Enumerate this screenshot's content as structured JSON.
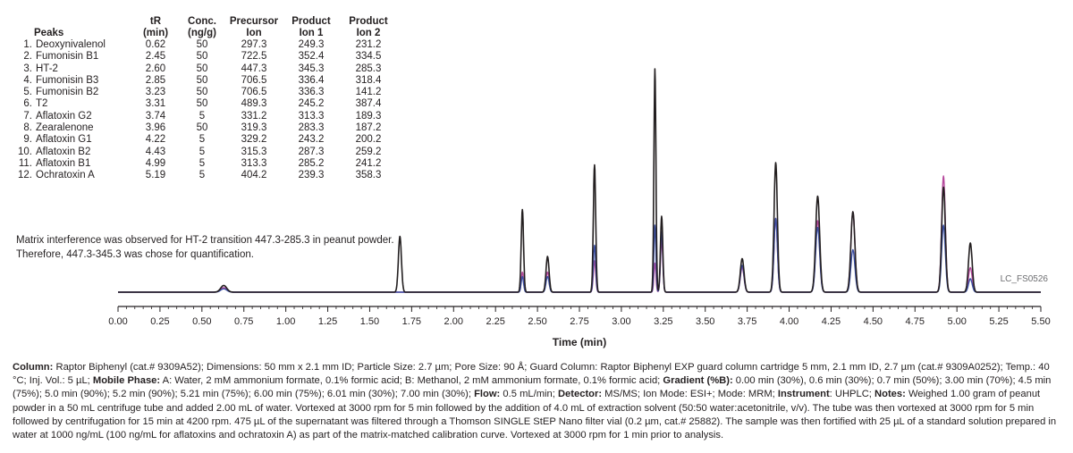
{
  "chart_data": {
    "type": "line",
    "title": "",
    "xlabel": "Time (min)",
    "ylabel": "",
    "xlim": [
      0.0,
      5.5
    ],
    "x_ticks": [
      "0.00",
      "0.25",
      "0.50",
      "0.75",
      "1.00",
      "1.25",
      "1.50",
      "1.75",
      "2.00",
      "2.25",
      "2.50",
      "2.75",
      "3.00",
      "3.25",
      "3.50",
      "3.75",
      "4.00",
      "4.25",
      "4.50",
      "4.75",
      "5.00",
      "5.25",
      "5.50"
    ],
    "y_axis_shown": false,
    "grid": false,
    "figure_code": "LC_FS0526",
    "series_colors": [
      "#231f20",
      "#3b4fa3",
      "#b5489c"
    ],
    "peak_table": {
      "headers": {
        "peaks": "Peaks",
        "rt": [
          "tR",
          "(min)"
        ],
        "conc": [
          "Conc.",
          "(ng/g)"
        ],
        "precursor": [
          "Precursor",
          "Ion"
        ],
        "product1": [
          "Product",
          "Ion 1"
        ],
        "product2": [
          "Product",
          "Ion 2"
        ]
      },
      "rows": [
        {
          "num": "1.",
          "name": "Deoxynivalenol",
          "rt": "0.62",
          "conc": "50",
          "precursor": "297.3",
          "p1": "249.3",
          "p2": "231.2"
        },
        {
          "num": "2.",
          "name": "Fumonisin B1",
          "rt": "2.45",
          "conc": "50",
          "precursor": "722.5",
          "p1": "352.4",
          "p2": "334.5"
        },
        {
          "num": "3.",
          "name": "HT-2",
          "rt": "2.60",
          "conc": "50",
          "precursor": "447.3",
          "p1": "345.3",
          "p2": "285.3"
        },
        {
          "num": "4.",
          "name": "Fumonisin B3",
          "rt": "2.85",
          "conc": "50",
          "precursor": "706.5",
          "p1": "336.4",
          "p2": "318.4"
        },
        {
          "num": "5.",
          "name": "Fumonisin B2",
          "rt": "3.23",
          "conc": "50",
          "precursor": "706.5",
          "p1": "336.3",
          "p2": "141.2"
        },
        {
          "num": "6.",
          "name": "T2",
          "rt": "3.31",
          "conc": "50",
          "precursor": "489.3",
          "p1": "245.2",
          "p2": "387.4"
        },
        {
          "num": "7.",
          "name": "Aflatoxin G2",
          "rt": "3.74",
          "conc": "5",
          "precursor": "331.2",
          "p1": "313.3",
          "p2": "189.3"
        },
        {
          "num": "8.",
          "name": "Zearalenone",
          "rt": "3.96",
          "conc": "50",
          "precursor": "319.3",
          "p1": "283.3",
          "p2": "187.2"
        },
        {
          "num": "9.",
          "name": "Aflatoxin G1",
          "rt": "4.22",
          "conc": "5",
          "precursor": "329.2",
          "p1": "243.2",
          "p2": "200.2"
        },
        {
          "num": "10.",
          "name": "Aflatoxin B2",
          "rt": "4.43",
          "conc": "5",
          "precursor": "315.3",
          "p1": "287.3",
          "p2": "259.2"
        },
        {
          "num": "11.",
          "name": "Aflatoxin B1",
          "rt": "4.99",
          "conc": "5",
          "precursor": "313.3",
          "p1": "285.2",
          "p2": "241.2"
        },
        {
          "num": "12.",
          "name": "Ochratoxin A",
          "rt": "5.19",
          "conc": "5",
          "precursor": "404.2",
          "p1": "239.3",
          "p2": "358.3"
        }
      ]
    },
    "peaks_relative_height": [
      {
        "t": 0.63,
        "black": 0.03,
        "blue": 0.015,
        "pink": 0.02,
        "w": 0.018
      },
      {
        "t": 1.68,
        "black": 0.25,
        "blue": 0,
        "pink": 0,
        "w": 0.009
      },
      {
        "t": 2.41,
        "black": 0.37,
        "blue": 0.07,
        "pink": 0.09,
        "w": 0.007
      },
      {
        "t": 2.56,
        "black": 0.16,
        "blue": 0.07,
        "pink": 0.09,
        "w": 0.009
      },
      {
        "t": 2.84,
        "black": 0.57,
        "blue": 0.21,
        "pink": 0.14,
        "w": 0.007
      },
      {
        "t": 3.2,
        "black": 1.0,
        "blue": 0.3,
        "pink": 0.13,
        "w": 0.006
      },
      {
        "t": 3.24,
        "black": 0.34,
        "blue": 0.27,
        "pink": 0.23,
        "w": 0.007
      },
      {
        "t": 3.72,
        "black": 0.15,
        "blue": 0.12,
        "pink": 0.11,
        "w": 0.011
      },
      {
        "t": 3.92,
        "black": 0.58,
        "blue": 0.33,
        "pink": 0.33,
        "w": 0.01
      },
      {
        "t": 4.17,
        "black": 0.43,
        "blue": 0.29,
        "pink": 0.32,
        "w": 0.012
      },
      {
        "t": 4.38,
        "black": 0.36,
        "blue": 0.19,
        "pink": 0.36,
        "w": 0.012
      },
      {
        "t": 4.92,
        "black": 0.47,
        "blue": 0.3,
        "pink": 0.52,
        "w": 0.011
      },
      {
        "t": 5.08,
        "black": 0.22,
        "blue": 0.06,
        "pink": 0.11,
        "w": 0.011
      }
    ]
  },
  "note": "Matrix interference was observed for HT-2 transition 447.3-285.3 in peanut powder. Therefore, 447.3-345.3 was chose for quantification.",
  "conditions": [
    {
      "label": "Column:",
      "text": " Raptor Biphenyl (cat.# 9309A52); Dimensions: 50 mm x 2.1 mm ID; Particle Size: 2.7 µm; Pore Size: 90 Å; Guard Column: Raptor Biphenyl EXP guard column cartridge 5 mm, 2.1 mm ID, 2.7 µm (cat.# 9309A0252); Temp.: 40 °C; Inj. Vol.: 5 µL; "
    },
    {
      "label": "Mobile Phase:",
      "text": " A: Water, 2 mM ammonium formate, 0.1% formic acid; B: Methanol, 2 mM ammonium formate, 0.1% formic acid; "
    },
    {
      "label": "Gradient (%B):",
      "text": " 0.00 min (30%), 0.6 min (30%); 0.7 min (50%); 3.00 min (70%); 4.5 min (75%); 5.0 min (90%); 5.2 min (90%); 5.21 min (75%); 6.00 min (75%); 6.01 min (30%); 7.00 min (30%); "
    },
    {
      "label": "Flow:",
      "text": " 0.5 mL/min; "
    },
    {
      "label": "Detector:",
      "text": " MS/MS; Ion Mode: ESI+; Mode: MRM; "
    },
    {
      "label": "Instrument",
      "text": ": UHPLC; "
    },
    {
      "label": "Notes:",
      "text": " Weighed 1.00 gram of peanut powder in a 50 mL centrifuge tube and added 2.00 mL of water. Vortexed at 3000 rpm for 5 min followed by the addition of 4.0 mL of extraction solvent (50:50 water:acetonitrile, v/v). The tube was then vortexed at 3000 rpm for 5 min followed by centrifugation for 15 min at 4200 rpm. 475 µL of the supernatant was filtered through a Thomson SINGLE StEP Nano filter vial (0.2 µm, cat.# 25882). The sample was then fortified with 25 µL of a standard solution prepared in water at 1000 ng/mL (100 ng/mL for aflatoxins and ochratoxin A) as part of the matrix-matched calibration curve. Vortexed at 3000 rpm for 1 min prior to analysis."
    }
  ]
}
